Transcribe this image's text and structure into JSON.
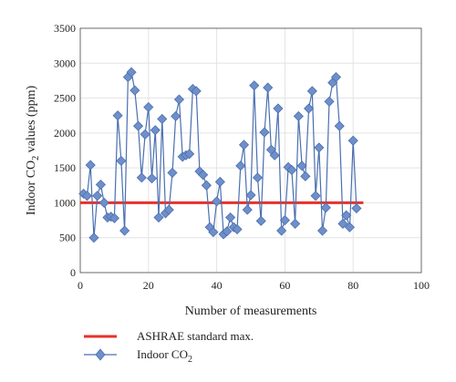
{
  "chart_data": {
    "type": "line",
    "xlabel": "Number of measurements",
    "ylabel": "Indoor CO",
    "ylabel_sub": "2",
    "ylabel_suffix": " values (ppm)",
    "xlim": [
      0,
      100
    ],
    "ylim": [
      0,
      3500
    ],
    "xticks": [
      0,
      20,
      40,
      60,
      80,
      100
    ],
    "yticks": [
      0,
      500,
      1000,
      1500,
      2000,
      2500,
      3000,
      3500
    ],
    "grid": true,
    "legend_position": "bottom-left",
    "colors": {
      "standard": "#e8302a",
      "indoor": "#4a6fb0",
      "indoor_marker": "#6f8fc9",
      "grid": "#e3e3e3"
    },
    "series": [
      {
        "name": "ASHRAE standard max.",
        "kind": "hline",
        "x": [
          0,
          83
        ],
        "values": [
          1000,
          1000
        ]
      },
      {
        "name": "Indoor CO",
        "name_sub": "2",
        "kind": "line-marker",
        "marker": "diamond",
        "x": [
          1,
          2,
          3,
          4,
          5,
          6,
          7,
          8,
          9,
          10,
          11,
          12,
          13,
          14,
          15,
          16,
          17,
          18,
          19,
          20,
          21,
          22,
          23,
          24,
          25,
          26,
          27,
          28,
          29,
          30,
          31,
          32,
          33,
          34,
          35,
          36,
          37,
          38,
          39,
          40,
          41,
          42,
          43,
          44,
          45,
          46,
          47,
          48,
          49,
          50,
          51,
          52,
          53,
          54,
          55,
          56,
          57,
          58,
          59,
          60,
          61,
          62,
          63,
          64,
          65,
          66,
          67,
          68,
          69,
          70,
          71,
          72,
          73,
          74,
          75,
          76,
          77,
          78,
          79,
          80,
          81
        ],
        "values": [
          1130,
          1100,
          1540,
          500,
          1100,
          1260,
          1000,
          790,
          800,
          780,
          2250,
          1600,
          600,
          2800,
          2870,
          2610,
          2100,
          1360,
          1980,
          2370,
          1350,
          2040,
          790,
          2200,
          850,
          900,
          1430,
          2240,
          2480,
          1660,
          1680,
          1700,
          2630,
          2600,
          1450,
          1400,
          1250,
          650,
          580,
          1020,
          1300,
          550,
          590,
          790,
          650,
          620,
          1530,
          1830,
          900,
          1110,
          2680,
          1360,
          740,
          2010,
          2650,
          1760,
          1680,
          2350,
          600,
          750,
          1510,
          1470,
          700,
          2240,
          1530,
          1380,
          2350,
          2600,
          1100,
          1790,
          600,
          930,
          2450,
          2720,
          2800,
          2100,
          700,
          820,
          650,
          1890,
          920
        ]
      }
    ]
  }
}
